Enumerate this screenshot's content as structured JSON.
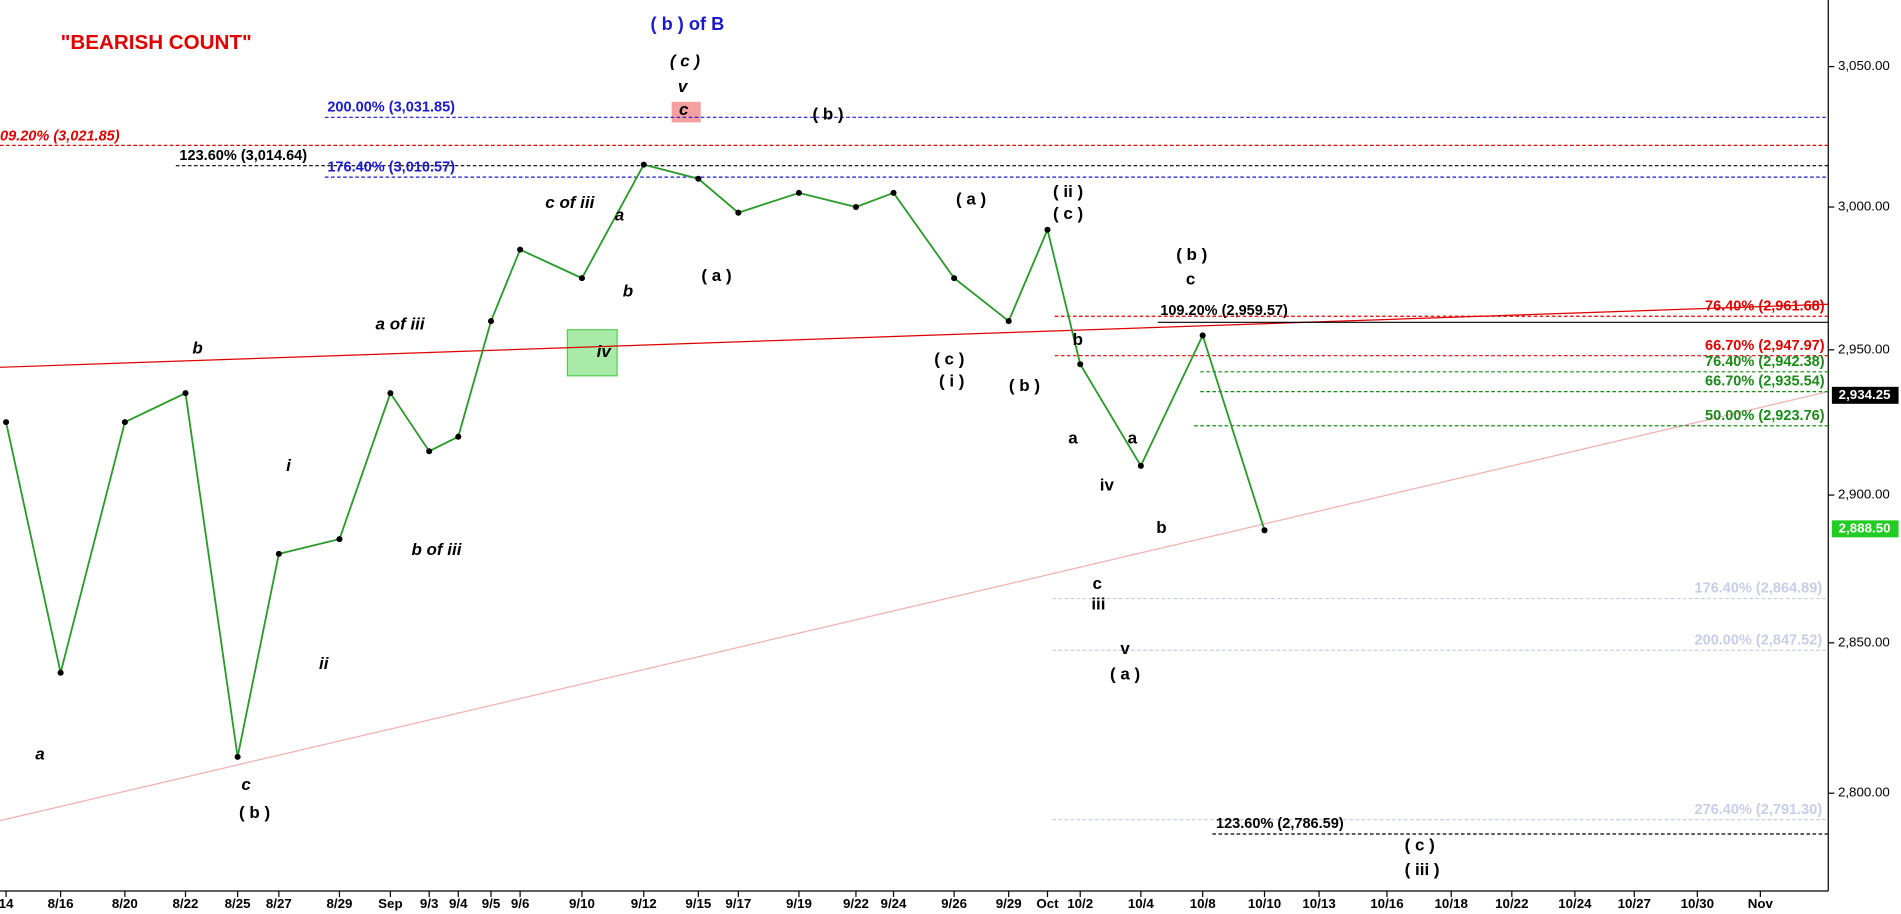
{
  "chart_data": {
    "type": "line",
    "title": "\"BEARISH COUNT\"",
    "subtitle": "( b ) of B",
    "log_scale": true,
    "ylim": [
      2766,
      3074
    ],
    "yticks": [
      {
        "value": 2800,
        "label": "2,800.00"
      },
      {
        "value": 2850,
        "label": "2,850.00"
      },
      {
        "value": 2900,
        "label": "2,900.00"
      },
      {
        "value": 2950,
        "label": "2,950.00"
      },
      {
        "value": 3000,
        "label": "3,000.00"
      },
      {
        "value": 3050,
        "label": "3,050.00"
      }
    ],
    "categories": [
      "14",
      "8/16",
      "8/20",
      "8/22",
      "8/25",
      "8/27",
      "8/29",
      "Sep",
      "9/3",
      "9/4",
      "9/5",
      "9/6",
      "9/10",
      "9/12",
      "9/15",
      "9/17",
      "9/19",
      "9/22",
      "9/24",
      "9/26",
      "9/29",
      "Oct",
      "10/2",
      "10/4",
      "10/8",
      "10/10",
      "10/13",
      "10/16",
      "10/18",
      "10/22",
      "10/24",
      "10/27",
      "10/30",
      "Nov"
    ],
    "series": [
      {
        "color": "#2a9a2a",
        "values": [
          2925,
          2840,
          2925,
          2935,
          2812,
          2880,
          2885,
          2935,
          2915,
          2920,
          2960,
          2985,
          2975,
          3015,
          3010,
          2998,
          3005,
          3000,
          3005,
          2975,
          2960,
          2992,
          2945,
          2910,
          2955,
          2888,
          null,
          null,
          null,
          null,
          null,
          null,
          null,
          null
        ]
      }
    ],
    "levels": [
      {
        "label": "200.00% (3,031.85)",
        "value": 3031.85,
        "color": "#1a1acc",
        "style": "dashed"
      },
      {
        "label": "09.20% (3,021.85)",
        "value": 3021.85,
        "color": "#e00000",
        "style": "dashed"
      },
      {
        "label": "123.60% (3,014.64)",
        "value": 3014.64,
        "color": "#000000",
        "style": "dashed"
      },
      {
        "label": "176.40% (3,010.57)",
        "value": 3010.57,
        "color": "#1a1acc",
        "style": "dashed"
      },
      {
        "label": "109.20% (2,959.57)",
        "value": 2959.57,
        "color": "#000000",
        "style": "solid"
      },
      {
        "label": "76.40% (2,961.68)",
        "value": 2961.68,
        "color": "#e00000",
        "style": "dashed"
      },
      {
        "label": "66.70% (2,947.97)",
        "value": 2947.97,
        "color": "#e00000",
        "style": "dashed"
      },
      {
        "label": "76.40% (2,942.38)",
        "value": 2942.38,
        "color": "#1a8a1a",
        "style": "dashed"
      },
      {
        "label": "66.70% (2,935.54)",
        "value": 2935.54,
        "color": "#1a8a1a",
        "style": "dashed"
      },
      {
        "label": "50.00% (2,923.76)",
        "value": 2923.76,
        "color": "#1a8a1a",
        "style": "dashed"
      },
      {
        "label": "176.40% (2,864.89)",
        "value": 2864.89,
        "color": "#c8cde8",
        "style": "dashed"
      },
      {
        "label": "200.00% (2,847.52)",
        "value": 2847.52,
        "color": "#c8cde8",
        "style": "dashed"
      },
      {
        "label": "276.40% (2,791.30)",
        "value": 2791.3,
        "color": "#c8cde8",
        "style": "dashed"
      },
      {
        "label": "123.60% (2,786.59)",
        "value": 2786.59,
        "color": "#000000",
        "style": "dashed"
      }
    ],
    "price_tags": [
      {
        "value": 2934.25,
        "label": "2,934.25",
        "color": "#000000"
      },
      {
        "value": 2888.5,
        "label": "2,888.50",
        "color": "#22cc22"
      }
    ],
    "annotations": [
      "( c )",
      "v",
      "c",
      "( b )",
      "c of iii",
      "a",
      "b",
      "a of iii",
      "iv",
      "b",
      "i",
      "ii",
      "b of iii",
      "c",
      "( b )",
      "a",
      "( a )",
      "( a )",
      "( c )",
      "( i )",
      "( b )",
      "( ii )",
      "( c )",
      "b",
      "a",
      "iv",
      "c",
      "iii",
      "v",
      "( a )",
      "a",
      "b",
      "( b )",
      "c",
      "( c )",
      "( iii )"
    ]
  }
}
